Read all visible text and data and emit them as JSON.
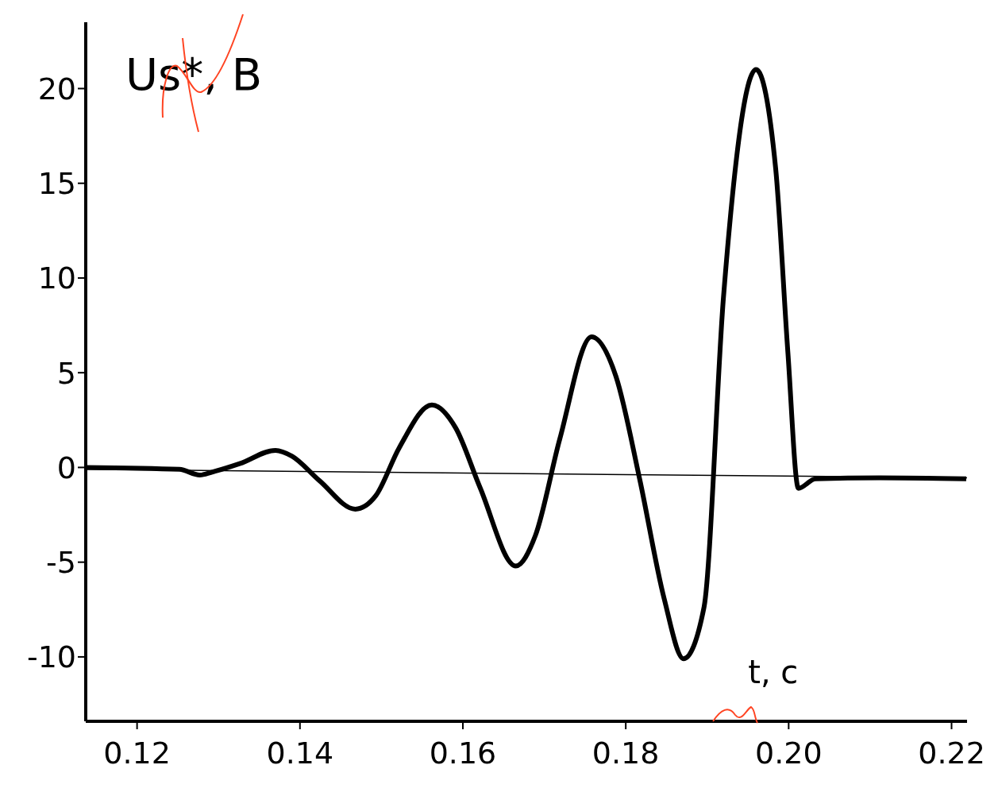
{
  "chart_data": {
    "type": "line",
    "ylabel": "Us*, B",
    "xlabel": "t, c",
    "xlim": [
      0.1137,
      0.2219
    ],
    "ylim": [
      -13.4,
      23.5
    ],
    "xticks": [
      0.12,
      0.14,
      0.16,
      0.18,
      {
        "value": 0.2,
        "label": "0.20"
      },
      0.22
    ],
    "yticks": [
      -10,
      -5,
      0,
      5,
      10,
      15,
      20
    ],
    "marker": "none",
    "line_style": "solid",
    "series": [
      {
        "color": "#000000",
        "x": [
          0.1137,
          0.1252,
          0.1277,
          0.1296,
          0.1326,
          0.137,
          0.139,
          0.1424,
          0.1468,
          0.1493,
          0.1522,
          0.1562,
          0.1591,
          0.1621,
          0.1665,
          0.1689,
          0.1719,
          0.1758,
          0.1788,
          0.1817,
          0.1847,
          0.1871,
          0.1896,
          0.192,
          0.196,
          0.1984,
          0.1999,
          0.2012,
          0.2033,
          0.2112,
          0.2218
        ],
        "values": [
          0,
          -0.1,
          -0.4,
          -0.2,
          0.2,
          0.9,
          0.6,
          -0.7,
          -2.2,
          -1.5,
          1.05,
          3.3,
          2.1,
          -1.05,
          -5.2,
          -3.6,
          1.5,
          6.9,
          4.8,
          -0.6,
          -6.9,
          -10.1,
          -7.4,
          9.0,
          21.0,
          15.8,
          6.1,
          -1.1,
          -0.6,
          -0.55,
          -0.6
        ]
      },
      {
        "color": "#000000",
        "x": [
          0.1137,
          0.2219
        ],
        "values": [
          -0.1,
          -0.55
        ]
      }
    ]
  }
}
